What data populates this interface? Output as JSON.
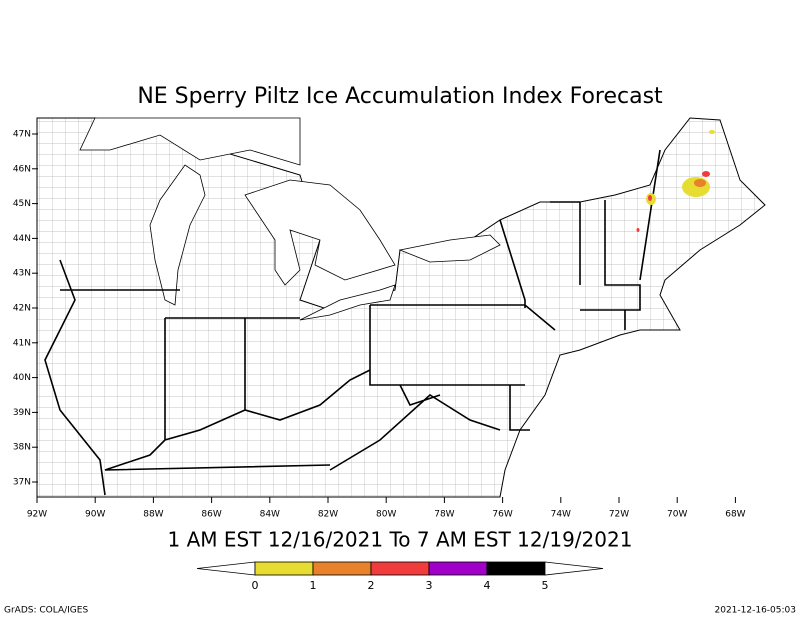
{
  "title": "NE Sperry Piltz Ice Accumulation Index Forecast",
  "subtitle": "1 AM EST 12/16/2021 To 7 AM EST 12/19/2021",
  "map": {
    "lat_labels": [
      "47N",
      "46N",
      "45N",
      "44N",
      "43N",
      "42N",
      "41N",
      "40N",
      "39N",
      "38N",
      "37N"
    ],
    "lon_labels": [
      "92W",
      "90W",
      "88W",
      "86W",
      "84W",
      "82W",
      "80W",
      "78W",
      "76W",
      "74W",
      "72W",
      "70W",
      "68W"
    ]
  },
  "colorbar": {
    "ticks": [
      0,
      1,
      2,
      3,
      4,
      5
    ],
    "colors": [
      "#e6dc32",
      "#e8822a",
      "#f03c3c",
      "#a000c8",
      "#000000"
    ]
  },
  "footer": {
    "left": "GrADS: COLA/IGES",
    "right": "2021-12-16-05:03"
  }
}
